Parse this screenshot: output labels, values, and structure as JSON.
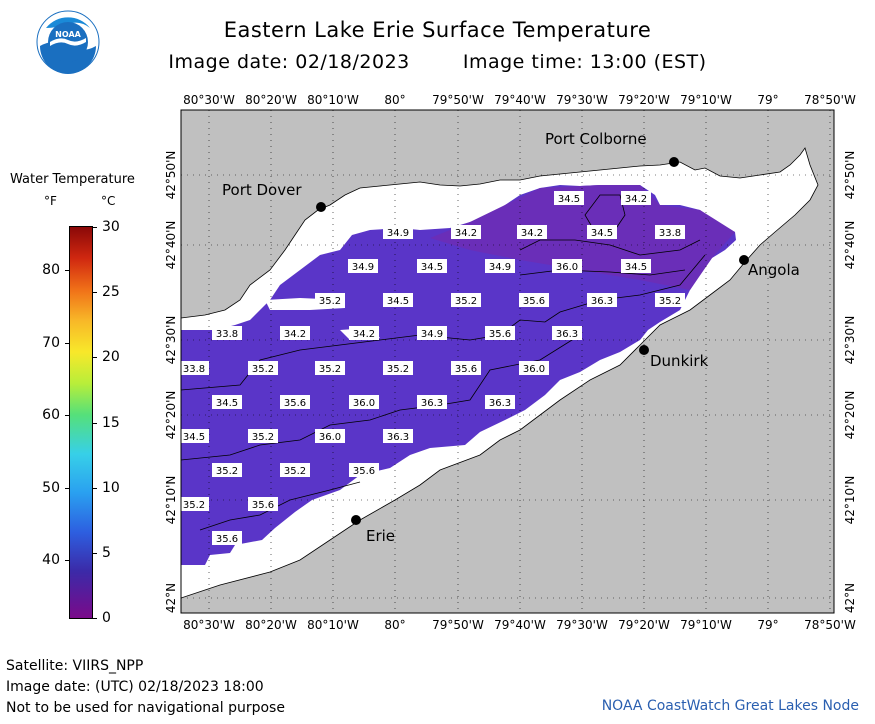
{
  "header": {
    "title": "Eastern Lake Erie Surface Temperature",
    "image_date": "Image date: 02/18/2023",
    "image_time": "Image time: 13:00 (EST)"
  },
  "logo": {
    "text": "NOAA",
    "icon": "noaa-logo-icon"
  },
  "legend": {
    "title": "Water Temperature",
    "unit_f": "°F",
    "unit_c": "°C",
    "f_ticks": [
      "80",
      "70",
      "60",
      "50",
      "40"
    ],
    "f_values": [
      80,
      70,
      60,
      50,
      40
    ],
    "c_ticks": [
      "30",
      "25",
      "20",
      "15",
      "10",
      "5",
      "0"
    ],
    "c_values": [
      30,
      25,
      20,
      15,
      10,
      5,
      0
    ]
  },
  "axes": {
    "lon_labels": [
      "80°30'W",
      "80°20'W",
      "80°10'W",
      "80°",
      "79°50'W",
      "79°40'W",
      "79°30'W",
      "79°20'W",
      "79°10'W",
      "79°",
      "78°50'W"
    ],
    "lat_labels": [
      "42°50'N",
      "42°40'N",
      "42°30'N",
      "42°20'N",
      "42°10'N",
      "42°N"
    ]
  },
  "cities": [
    {
      "name": "Port Colborne"
    },
    {
      "name": "Port Dover"
    },
    {
      "name": "Angola"
    },
    {
      "name": "Dunkirk"
    },
    {
      "name": "Erie"
    }
  ],
  "temperature_labels": [
    {
      "t": "34.5"
    },
    {
      "t": "34.2"
    },
    {
      "t": "34.9"
    },
    {
      "t": "34.2"
    },
    {
      "t": "34.2"
    },
    {
      "t": "34.5"
    },
    {
      "t": "33.8"
    },
    {
      "t": "34.9"
    },
    {
      "t": "34.5"
    },
    {
      "t": "34.9"
    },
    {
      "t": "36.0"
    },
    {
      "t": "34.5"
    },
    {
      "t": "35.2"
    },
    {
      "t": "34.5"
    },
    {
      "t": "35.2"
    },
    {
      "t": "35.6"
    },
    {
      "t": "36.3"
    },
    {
      "t": "35.2"
    },
    {
      "t": "33.8"
    },
    {
      "t": "34.2"
    },
    {
      "t": "34.2"
    },
    {
      "t": "34.9"
    },
    {
      "t": "35.6"
    },
    {
      "t": "36.3"
    },
    {
      "t": "33.8"
    },
    {
      "t": "35.2"
    },
    {
      "t": "35.2"
    },
    {
      "t": "35.2"
    },
    {
      "t": "35.6"
    },
    {
      "t": "36.0"
    },
    {
      "t": "34.5"
    },
    {
      "t": "35.6"
    },
    {
      "t": "36.0"
    },
    {
      "t": "36.3"
    },
    {
      "t": "36.3"
    },
    {
      "t": "34.5"
    },
    {
      "t": "35.2"
    },
    {
      "t": "36.0"
    },
    {
      "t": "36.3"
    },
    {
      "t": "35.2"
    },
    {
      "t": "35.2"
    },
    {
      "t": "35.6"
    },
    {
      "t": "35.2"
    },
    {
      "t": "35.6"
    },
    {
      "t": "35.6"
    }
  ],
  "colors": {
    "land": "#c0c0c0",
    "ice": "#ffffff",
    "water": "#5a35c8",
    "water_cold": "#6a2eb8",
    "credit": "#2a5fb0"
  },
  "footer": {
    "satellite": "Satellite: VIIRS_NPP",
    "utc_date": "Image date: (UTC) 02/18/2023  18:00",
    "disclaimer": "Not to be used for navigational purpose",
    "credit": "NOAA CoastWatch Great Lakes Node"
  }
}
